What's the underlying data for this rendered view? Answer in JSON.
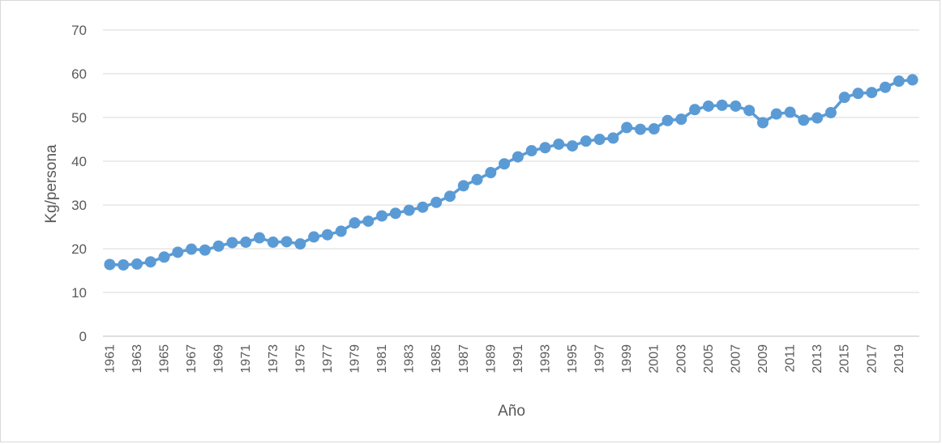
{
  "chart_data": {
    "type": "line",
    "title": "",
    "xlabel": "Año",
    "ylabel": "Kg/persona",
    "ylim": [
      0,
      70
    ],
    "yticks": [
      0,
      10,
      20,
      30,
      40,
      50,
      60,
      70
    ],
    "grid": true,
    "legend": "none",
    "line_color": "#5B9BD5",
    "x": [
      1961,
      1962,
      1963,
      1964,
      1965,
      1966,
      1967,
      1968,
      1969,
      1970,
      1971,
      1972,
      1973,
      1974,
      1975,
      1976,
      1977,
      1978,
      1979,
      1980,
      1981,
      1982,
      1983,
      1984,
      1985,
      1986,
      1987,
      1988,
      1989,
      1990,
      1991,
      1992,
      1993,
      1994,
      1995,
      1996,
      1997,
      1998,
      1999,
      2000,
      2001,
      2002,
      2003,
      2004,
      2005,
      2006,
      2007,
      2008,
      2009,
      2010,
      2011,
      2012,
      2013,
      2014,
      2015,
      2016,
      2017,
      2018,
      2019,
      2020
    ],
    "xtick_labels": [
      "1961",
      "1963",
      "1965",
      "1967",
      "1969",
      "1971",
      "1973",
      "1975",
      "1977",
      "1979",
      "1981",
      "1983",
      "1985",
      "1987",
      "1989",
      "1991",
      "1993",
      "1995",
      "1997",
      "1999",
      "2001",
      "2003",
      "2005",
      "2007",
      "2009",
      "2011",
      "2013",
      "2015",
      "2017",
      "2019"
    ],
    "series": [
      {
        "values": [
          16.4,
          16.3,
          16.5,
          17.0,
          18.1,
          19.2,
          19.9,
          19.7,
          20.6,
          21.4,
          21.5,
          22.5,
          21.5,
          21.6,
          21.1,
          22.7,
          23.2,
          24.0,
          25.9,
          26.3,
          27.5,
          28.1,
          28.8,
          29.5,
          30.6,
          32.0,
          34.4,
          35.8,
          37.4,
          39.4,
          41.0,
          42.4,
          43.1,
          43.9,
          43.5,
          44.6,
          45.0,
          45.3,
          47.7,
          47.3,
          47.4,
          49.3,
          49.6,
          51.8,
          52.6,
          52.8,
          52.6,
          51.6,
          48.8,
          50.8,
          51.2,
          49.4,
          49.9,
          51.1,
          54.6,
          55.5,
          55.7,
          56.9,
          58.3,
          58.6
        ]
      }
    ]
  }
}
